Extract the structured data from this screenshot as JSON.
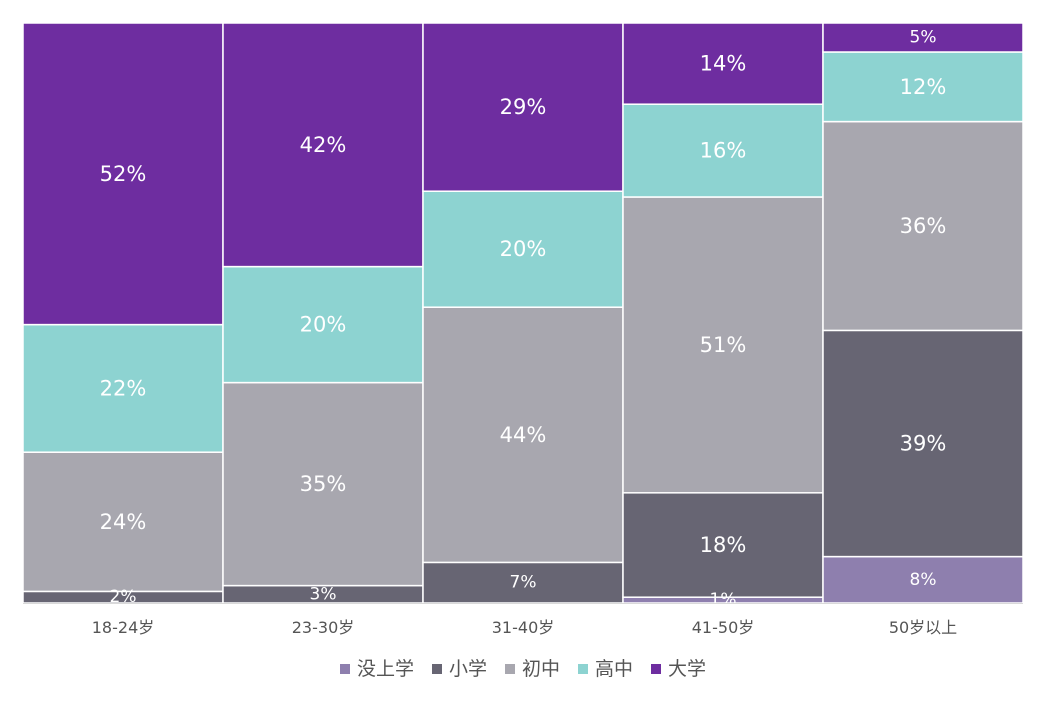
{
  "chart_data": {
    "type": "bar",
    "stacked": true,
    "normalized_100_percent": true,
    "title": "",
    "xlabel": "",
    "ylabel": "",
    "ylim": [
      0,
      100
    ],
    "grid": false,
    "legend_position": "bottom",
    "categories": [
      "18-24岁",
      "23-30岁",
      "31-40岁",
      "41-50岁",
      "50岁以上"
    ],
    "series": [
      {
        "name": "没上学",
        "color": "#8E7FAE",
        "values": [
          0,
          0,
          0,
          1,
          8
        ],
        "labels": [
          "",
          "",
          "",
          "1%",
          "8%"
        ]
      },
      {
        "name": "小学",
        "color": "#676573",
        "values": [
          2,
          3,
          7,
          18,
          39
        ],
        "labels": [
          "2%",
          "3%",
          "7%",
          "18%",
          "39%"
        ]
      },
      {
        "name": "初中",
        "color": "#A8A7AF",
        "values": [
          24,
          35,
          44,
          51,
          36
        ],
        "labels": [
          "24%",
          "35%",
          "44%",
          "51%",
          "36%"
        ]
      },
      {
        "name": "高中",
        "color": "#8DD3D1",
        "values": [
          22,
          20,
          20,
          16,
          12
        ],
        "labels": [
          "22%",
          "20%",
          "20%",
          "16%",
          "12%"
        ]
      },
      {
        "name": "大学",
        "color": "#6E2DA0",
        "values": [
          52,
          42,
          29,
          14,
          5
        ],
        "labels": [
          "52%",
          "42%",
          "29%",
          "14%",
          "5%"
        ]
      }
    ]
  }
}
